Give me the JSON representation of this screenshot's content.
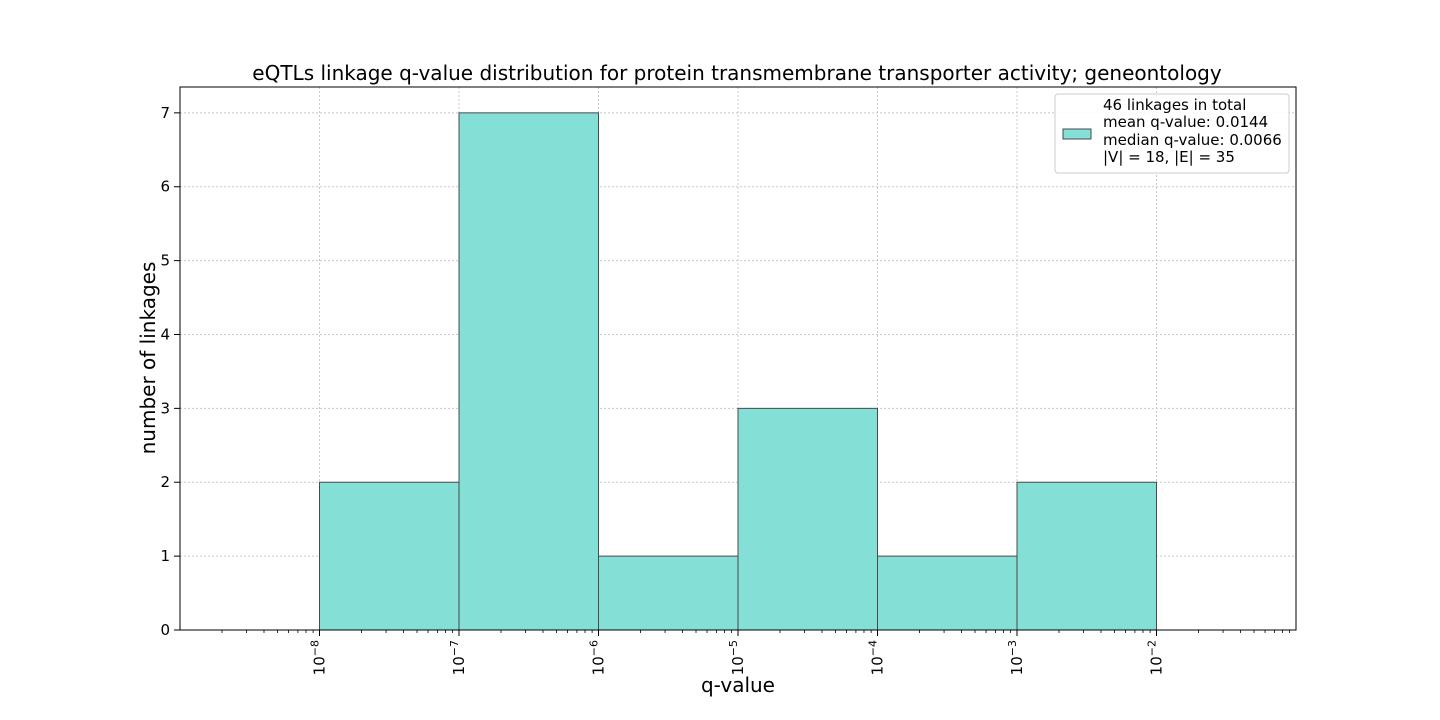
{
  "chart_data": {
    "type": "bar",
    "title": "eQTLs linkage q-value distribution for protein transmembrane transporter activity; geneontology",
    "xlabel": "q-value",
    "ylabel": "number of linkages",
    "x_scale": "log10",
    "xlim": [
      1e-09,
      0.1
    ],
    "ylim": [
      0,
      7.35
    ],
    "grid": true,
    "bins": [
      {
        "start": 1e-08,
        "end": 1e-07,
        "value": 2
      },
      {
        "start": 1e-07,
        "end": 1e-06,
        "value": 7
      },
      {
        "start": 1e-06,
        "end": 1e-05,
        "value": 1
      },
      {
        "start": 1e-05,
        "end": 0.0001,
        "value": 3
      },
      {
        "start": 0.0001,
        "end": 0.001,
        "value": 1
      },
      {
        "start": 0.001,
        "end": 0.01,
        "value": 2
      }
    ],
    "x_ticks": [
      {
        "value": 1e-08,
        "base": "10",
        "exp": "−8"
      },
      {
        "value": 1e-07,
        "base": "10",
        "exp": "−7"
      },
      {
        "value": 1e-06,
        "base": "10",
        "exp": "−6"
      },
      {
        "value": 1e-05,
        "base": "10",
        "exp": "−5"
      },
      {
        "value": 0.0001,
        "base": "10",
        "exp": "−4"
      },
      {
        "value": 0.001,
        "base": "10",
        "exp": "−3"
      },
      {
        "value": 0.01,
        "base": "10",
        "exp": "−2"
      }
    ],
    "y_ticks": [
      "0",
      "1",
      "2",
      "3",
      "4",
      "5",
      "6",
      "7"
    ],
    "legend": {
      "placement": "top-right",
      "lines": [
        "46 linkages in total",
        "mean q-value: 0.0144",
        "median q-value: 0.0066",
        "|V| = 18, |E| = 35"
      ]
    },
    "colors": {
      "bar_fill": "#84dfd6",
      "bar_edge": "#4a4a4a",
      "grid": "#c8c8c8"
    }
  }
}
